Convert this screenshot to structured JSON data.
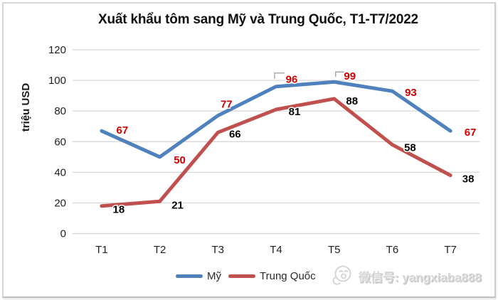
{
  "chart_data": {
    "type": "line",
    "title": "Xuất khẩu tôm sang Mỹ và Trung Quốc, T1-T7/2022",
    "xlabel": "",
    "ylabel": "triệu USD",
    "categories": [
      "T1",
      "T2",
      "T3",
      "T4",
      "T5",
      "T6",
      "T7"
    ],
    "y_ticks": [
      0,
      20,
      40,
      60,
      80,
      100,
      120
    ],
    "ylim": [
      0,
      120
    ],
    "grid": "horizontal",
    "gridline_color": "#d3d3d3",
    "legend_position": "bottom",
    "leader_line_color": "#a6a6a6",
    "series": [
      {
        "name": "Mỹ",
        "color": "#4F81BD",
        "label_color": "#D00000",
        "values": [
          67,
          50,
          77,
          96,
          99,
          93,
          67
        ],
        "label_offsets": [
          [
            29,
            -1
          ],
          [
            28,
            4
          ],
          [
            12,
            -16
          ],
          [
            22,
            -10
          ],
          [
            22,
            -8
          ],
          [
            26,
            2
          ],
          [
            28,
            2
          ]
        ],
        "leaders": [
          {
            "index": 3,
            "points": [
              [
                -2,
                -11
              ],
              [
                -2,
                -19
              ],
              [
                12,
                -19
              ]
            ]
          },
          {
            "index": 4,
            "points": [
              [
                2,
                -7
              ],
              [
                2,
                -14
              ],
              [
                14,
                -14
              ]
            ]
          }
        ]
      },
      {
        "name": "Trung Quốc",
        "color": "#C0504D",
        "label_color": "#000000",
        "values": [
          18,
          21,
          66,
          81,
          88,
          58,
          38
        ],
        "label_offsets": [
          [
            24,
            5
          ],
          [
            25,
            5
          ],
          [
            24,
            2
          ],
          [
            26,
            3
          ],
          [
            25,
            3
          ],
          [
            25,
            4
          ],
          [
            25,
            5
          ]
        ],
        "leaders": []
      }
    ]
  },
  "watermark": {
    "icon": "chat-face-icon",
    "label": "微信号: yangxiaba888"
  }
}
